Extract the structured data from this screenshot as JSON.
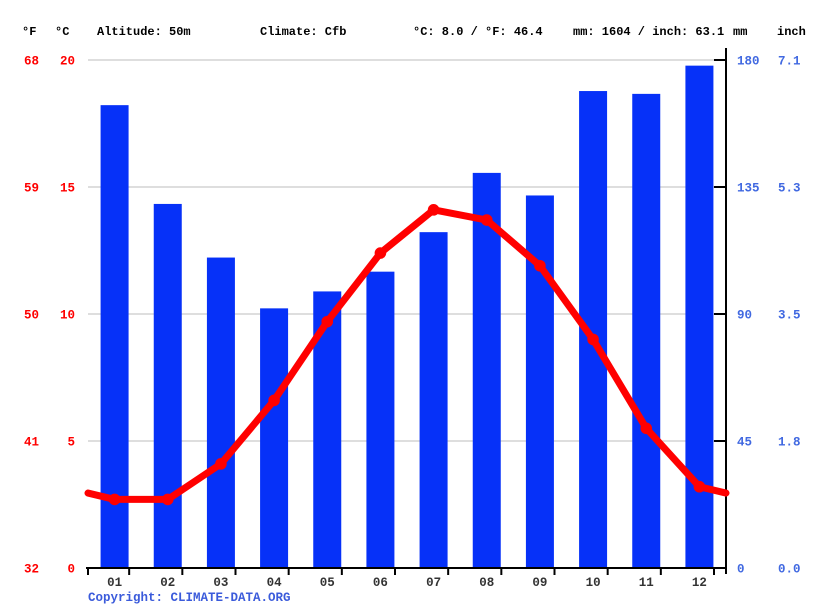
{
  "header": {
    "unit_f": "°F",
    "unit_c": "°C",
    "altitude": "Altitude: 50m",
    "climate": "Climate: Cfb",
    "temp_summary": "°C: 8.0 / °F: 46.4",
    "precip_summary": "mm: 1604 / inch: 63.1",
    "unit_mm": "mm",
    "unit_inch": "inch"
  },
  "axes": {
    "left_f": [
      "68",
      "59",
      "50",
      "41",
      "32"
    ],
    "left_c": [
      "20",
      "15",
      "10",
      "5",
      "0"
    ],
    "right_mm": [
      "180",
      "135",
      "90",
      "45",
      "0"
    ],
    "right_inch": [
      "7.1",
      "5.3",
      "3.5",
      "1.8",
      "0.0"
    ]
  },
  "chart_data": {
    "type": "climograph (bar + line)",
    "categories": [
      "01",
      "02",
      "03",
      "04",
      "05",
      "06",
      "07",
      "08",
      "09",
      "10",
      "11",
      "12"
    ],
    "series": [
      {
        "name": "precipitation",
        "type": "bar",
        "unit": "mm",
        "values": [
          164,
          129,
          110,
          92,
          98,
          105,
          119,
          140,
          132,
          169,
          168,
          178
        ]
      },
      {
        "name": "temperature",
        "type": "line",
        "unit": "°C",
        "values": [
          2.7,
          2.7,
          4.1,
          6.6,
          9.7,
          12.4,
          14.1,
          13.7,
          11.9,
          9.0,
          5.5,
          3.2
        ],
        "edge_value": 2.95
      }
    ],
    "ylim_temp_c": [
      0,
      20
    ],
    "ylim_precip_mm": [
      0,
      180
    ],
    "temp_ticks_c": [
      20,
      15,
      10,
      5,
      0
    ],
    "precip_ticks_mm": [
      180,
      135,
      90,
      45,
      0
    ],
    "grid": true,
    "legend": "none",
    "annual_mean_temp_c": 8.0,
    "annual_precip_mm": 1604
  },
  "footer": {
    "copyright_label": "Copyright: ",
    "copyright_link": "CLIMATE-DATA.ORG"
  },
  "colors": {
    "bar": "#0631f8",
    "line": "#ff0000",
    "red_text": "#ff0000",
    "blue_text": "#4169e1",
    "month_text": "#333333",
    "grid": "#cbcbcb",
    "axis": "#000000",
    "copyright": "#3b5bdb"
  }
}
